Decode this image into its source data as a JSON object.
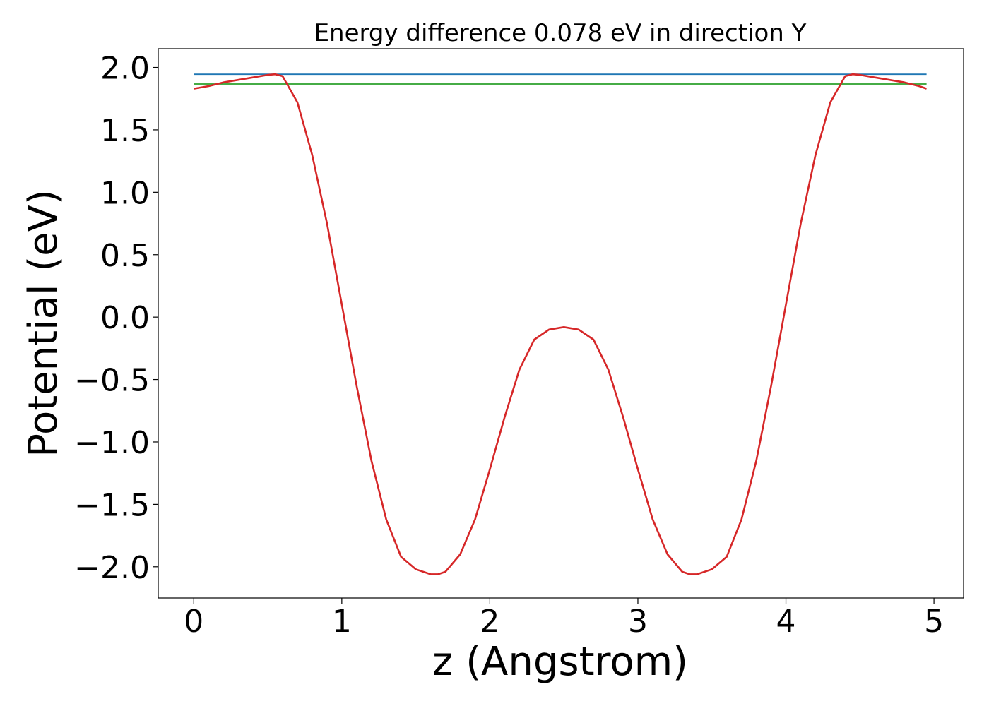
{
  "chart_data": {
    "type": "line",
    "title": "Energy difference 0.078 eV in direction Y",
    "xlabel": "z (Angstrom)",
    "ylabel": "Potential (eV)",
    "xlim": [
      -0.24,
      5.2
    ],
    "ylim": [
      -2.25,
      2.15
    ],
    "xticks": [
      0,
      1,
      2,
      3,
      4,
      5
    ],
    "xtick_labels": [
      "0",
      "1",
      "2",
      "3",
      "4",
      "5"
    ],
    "yticks": [
      2.0,
      1.5,
      1.0,
      0.5,
      0.0,
      -0.5,
      -1.0,
      -1.5,
      -2.0
    ],
    "ytick_labels": [
      "2.0",
      "1.5",
      "1.0",
      "0.5",
      "0.0",
      "−0.5",
      "−1.0",
      "−1.5",
      "−2.0"
    ],
    "grid": false,
    "series": [
      {
        "color": "#d62728",
        "x": [
          0.0,
          0.1,
          0.2,
          0.3,
          0.4,
          0.5,
          0.55,
          0.6,
          0.7,
          0.8,
          0.9,
          1.0,
          1.1,
          1.2,
          1.3,
          1.4,
          1.5,
          1.6,
          1.65,
          1.7,
          1.8,
          1.9,
          2.0,
          2.1,
          2.2,
          2.3,
          2.4,
          2.5,
          2.6,
          2.7,
          2.8,
          2.9,
          3.0,
          3.1,
          3.2,
          3.3,
          3.35,
          3.4,
          3.5,
          3.6,
          3.7,
          3.8,
          3.9,
          4.0,
          4.1,
          4.2,
          4.3,
          4.4,
          4.45,
          4.5,
          4.6,
          4.7,
          4.8,
          4.9,
          4.95
        ],
        "y": [
          1.83,
          1.85,
          1.88,
          1.9,
          1.92,
          1.94,
          1.945,
          1.93,
          1.72,
          1.3,
          0.75,
          0.1,
          -0.55,
          -1.15,
          -1.62,
          -1.92,
          -2.02,
          -2.06,
          -2.06,
          -2.04,
          -1.9,
          -1.62,
          -1.22,
          -0.8,
          -0.42,
          -0.18,
          -0.1,
          -0.08,
          -0.1,
          -0.18,
          -0.42,
          -0.8,
          -1.22,
          -1.62,
          -1.9,
          -2.04,
          -2.06,
          -2.06,
          -2.02,
          -1.92,
          -1.62,
          -1.15,
          -0.55,
          0.1,
          0.75,
          1.3,
          1.72,
          1.93,
          1.945,
          1.94,
          1.92,
          1.9,
          1.88,
          1.85,
          1.83
        ]
      },
      {
        "color": "#1f77b4",
        "x": [
          0.0,
          4.95
        ],
        "y": [
          1.945,
          1.945
        ]
      },
      {
        "color": "#2ca02c",
        "x": [
          0.0,
          4.95
        ],
        "y": [
          1.867,
          1.867
        ]
      }
    ]
  }
}
